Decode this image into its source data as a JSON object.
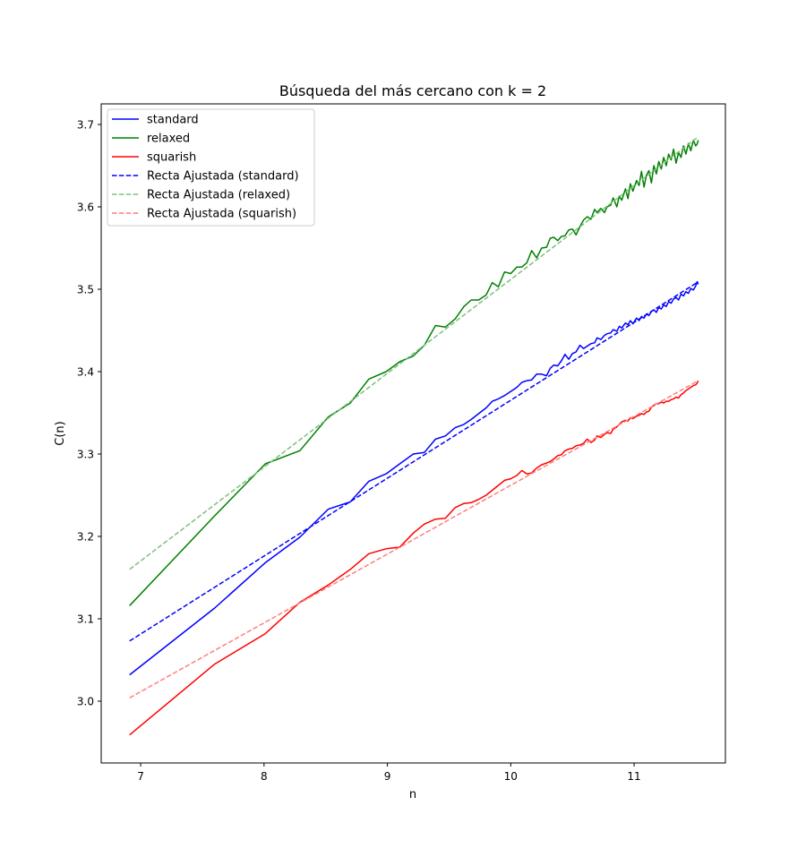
{
  "chart_data": {
    "type": "line",
    "title": "Búsqueda del más cercano con k = 2",
    "xlabel": "n",
    "ylabel": "C(n)",
    "xlim": [
      6.68,
      11.74
    ],
    "ylim": [
      2.925,
      3.725
    ],
    "xticks": [
      7,
      8,
      9,
      10,
      11
    ],
    "xtick_labels": [
      "7",
      "8",
      "9",
      "10",
      "11"
    ],
    "yticks": [
      3.0,
      3.1,
      3.2,
      3.3,
      3.4,
      3.5,
      3.6,
      3.7
    ],
    "ytick_labels": [
      "3.0",
      "3.1",
      "3.2",
      "3.3",
      "3.4",
      "3.5",
      "3.6",
      "3.7"
    ],
    "grid": false,
    "legend_position": "upper left",
    "series": [
      {
        "name": "standard",
        "color": "#0000ff",
        "style": "solid",
        "x": [
          6.91,
          7.6,
          8.01,
          8.29,
          8.52,
          8.7,
          8.85,
          8.99,
          9.1,
          9.21,
          9.3,
          9.39,
          9.47,
          9.55,
          9.62,
          9.68,
          9.74,
          9.8,
          9.85,
          9.9,
          9.95,
          10.0,
          10.05,
          10.09,
          10.13,
          10.17,
          10.21,
          10.25,
          10.29,
          10.32,
          10.35,
          10.38,
          10.41,
          10.44,
          10.47,
          10.5,
          10.53,
          10.56,
          10.59,
          10.62,
          10.65,
          10.68,
          10.7,
          10.73,
          10.76,
          10.78,
          10.81,
          10.83,
          10.86,
          10.88,
          10.9,
          10.93,
          10.95,
          10.97,
          10.99,
          11.02,
          11.04,
          11.06,
          11.08,
          11.1,
          11.12,
          11.14,
          11.16,
          11.18,
          11.2,
          11.22,
          11.24,
          11.26,
          11.28,
          11.3,
          11.32,
          11.34,
          11.36,
          11.38,
          11.4,
          11.42,
          11.44,
          11.46,
          11.48,
          11.5,
          11.51,
          11.52
        ],
        "y": [
          3.032,
          3.113,
          3.168,
          3.199,
          3.233,
          3.242,
          3.267,
          3.276,
          3.288,
          3.3,
          3.302,
          3.318,
          3.322,
          3.332,
          3.336,
          3.342,
          3.349,
          3.356,
          3.364,
          3.367,
          3.371,
          3.376,
          3.381,
          3.387,
          3.389,
          3.39,
          3.397,
          3.397,
          3.395,
          3.404,
          3.408,
          3.407,
          3.413,
          3.421,
          3.415,
          3.422,
          3.424,
          3.432,
          3.428,
          3.431,
          3.434,
          3.435,
          3.441,
          3.439,
          3.444,
          3.446,
          3.447,
          3.451,
          3.449,
          3.455,
          3.453,
          3.459,
          3.457,
          3.462,
          3.458,
          3.465,
          3.462,
          3.467,
          3.465,
          3.47,
          3.468,
          3.473,
          3.475,
          3.472,
          3.478,
          3.476,
          3.481,
          3.479,
          3.485,
          3.483,
          3.488,
          3.49,
          3.487,
          3.494,
          3.492,
          3.497,
          3.495,
          3.501,
          3.499,
          3.504,
          3.509,
          3.506
        ]
      },
      {
        "name": "relaxed",
        "color": "#008000",
        "style": "solid",
        "x": [
          6.91,
          7.6,
          8.01,
          8.29,
          8.52,
          8.7,
          8.85,
          8.99,
          9.1,
          9.21,
          9.3,
          9.39,
          9.47,
          9.55,
          9.62,
          9.68,
          9.74,
          9.8,
          9.85,
          9.9,
          9.95,
          10.0,
          10.05,
          10.09,
          10.13,
          10.17,
          10.21,
          10.25,
          10.29,
          10.32,
          10.35,
          10.38,
          10.41,
          10.44,
          10.47,
          10.5,
          10.53,
          10.56,
          10.59,
          10.62,
          10.65,
          10.68,
          10.7,
          10.73,
          10.76,
          10.78,
          10.81,
          10.83,
          10.86,
          10.88,
          10.9,
          10.93,
          10.95,
          10.97,
          10.99,
          11.02,
          11.04,
          11.06,
          11.08,
          11.1,
          11.12,
          11.14,
          11.16,
          11.18,
          11.2,
          11.22,
          11.24,
          11.26,
          11.28,
          11.3,
          11.32,
          11.34,
          11.36,
          11.38,
          11.4,
          11.42,
          11.44,
          11.46,
          11.48,
          11.5,
          11.51,
          11.52
        ],
        "y": [
          3.116,
          3.225,
          3.288,
          3.304,
          3.345,
          3.362,
          3.391,
          3.4,
          3.412,
          3.419,
          3.432,
          3.456,
          3.454,
          3.464,
          3.479,
          3.487,
          3.487,
          3.493,
          3.508,
          3.503,
          3.521,
          3.519,
          3.527,
          3.527,
          3.532,
          3.547,
          3.538,
          3.55,
          3.551,
          3.562,
          3.563,
          3.559,
          3.564,
          3.565,
          3.572,
          3.573,
          3.566,
          3.576,
          3.584,
          3.588,
          3.585,
          3.597,
          3.593,
          3.598,
          3.593,
          3.6,
          3.602,
          3.611,
          3.6,
          3.613,
          3.608,
          3.622,
          3.61,
          3.628,
          3.619,
          3.632,
          3.626,
          3.643,
          3.624,
          3.638,
          3.644,
          3.629,
          3.65,
          3.64,
          3.655,
          3.646,
          3.66,
          3.65,
          3.664,
          3.657,
          3.67,
          3.653,
          3.666,
          3.66,
          3.674,
          3.664,
          3.677,
          3.668,
          3.681,
          3.674,
          3.676,
          3.681
        ]
      },
      {
        "name": "squarish",
        "color": "#ff0000",
        "style": "solid",
        "x": [
          6.91,
          7.6,
          8.01,
          8.29,
          8.52,
          8.7,
          8.85,
          8.99,
          9.1,
          9.21,
          9.3,
          9.39,
          9.47,
          9.55,
          9.62,
          9.68,
          9.74,
          9.8,
          9.85,
          9.9,
          9.95,
          10.0,
          10.05,
          10.09,
          10.13,
          10.17,
          10.21,
          10.25,
          10.29,
          10.32,
          10.35,
          10.38,
          10.41,
          10.44,
          10.47,
          10.5,
          10.53,
          10.56,
          10.59,
          10.62,
          10.65,
          10.68,
          10.7,
          10.73,
          10.76,
          10.78,
          10.81,
          10.83,
          10.86,
          10.88,
          10.9,
          10.93,
          10.95,
          10.97,
          10.99,
          11.02,
          11.04,
          11.06,
          11.08,
          11.1,
          11.12,
          11.14,
          11.16,
          11.18,
          11.2,
          11.22,
          11.24,
          11.26,
          11.28,
          11.3,
          11.32,
          11.34,
          11.36,
          11.38,
          11.4,
          11.42,
          11.44,
          11.46,
          11.48,
          11.5,
          11.51,
          11.52
        ],
        "y": [
          2.959,
          3.045,
          3.082,
          3.12,
          3.141,
          3.16,
          3.179,
          3.185,
          3.187,
          3.204,
          3.215,
          3.221,
          3.222,
          3.235,
          3.24,
          3.241,
          3.245,
          3.25,
          3.256,
          3.262,
          3.268,
          3.27,
          3.274,
          3.28,
          3.276,
          3.277,
          3.283,
          3.287,
          3.289,
          3.291,
          3.294,
          3.298,
          3.299,
          3.304,
          3.306,
          3.307,
          3.31,
          3.311,
          3.313,
          3.318,
          3.314,
          3.317,
          3.322,
          3.32,
          3.324,
          3.326,
          3.325,
          3.33,
          3.333,
          3.336,
          3.339,
          3.341,
          3.34,
          3.344,
          3.343,
          3.346,
          3.347,
          3.349,
          3.348,
          3.351,
          3.352,
          3.357,
          3.359,
          3.361,
          3.361,
          3.363,
          3.362,
          3.364,
          3.364,
          3.366,
          3.367,
          3.369,
          3.368,
          3.372,
          3.374,
          3.377,
          3.379,
          3.381,
          3.383,
          3.384,
          3.386,
          3.389
        ]
      },
      {
        "name": "Recta Ajustada (standard)",
        "color": "#0000ff",
        "style": "dashed",
        "x": [
          6.91,
          11.52
        ],
        "y": [
          3.073,
          3.509
        ]
      },
      {
        "name": "Recta Ajustada (relaxed)",
        "color": "#7fbf7f",
        "style": "dashed",
        "x": [
          6.91,
          11.52
        ],
        "y": [
          3.16,
          3.685
        ]
      },
      {
        "name": "Recta Ajustada (squarish)",
        "color": "#ff7f7f",
        "style": "dashed",
        "x": [
          6.91,
          11.52
        ],
        "y": [
          3.004,
          3.389
        ]
      }
    ]
  }
}
